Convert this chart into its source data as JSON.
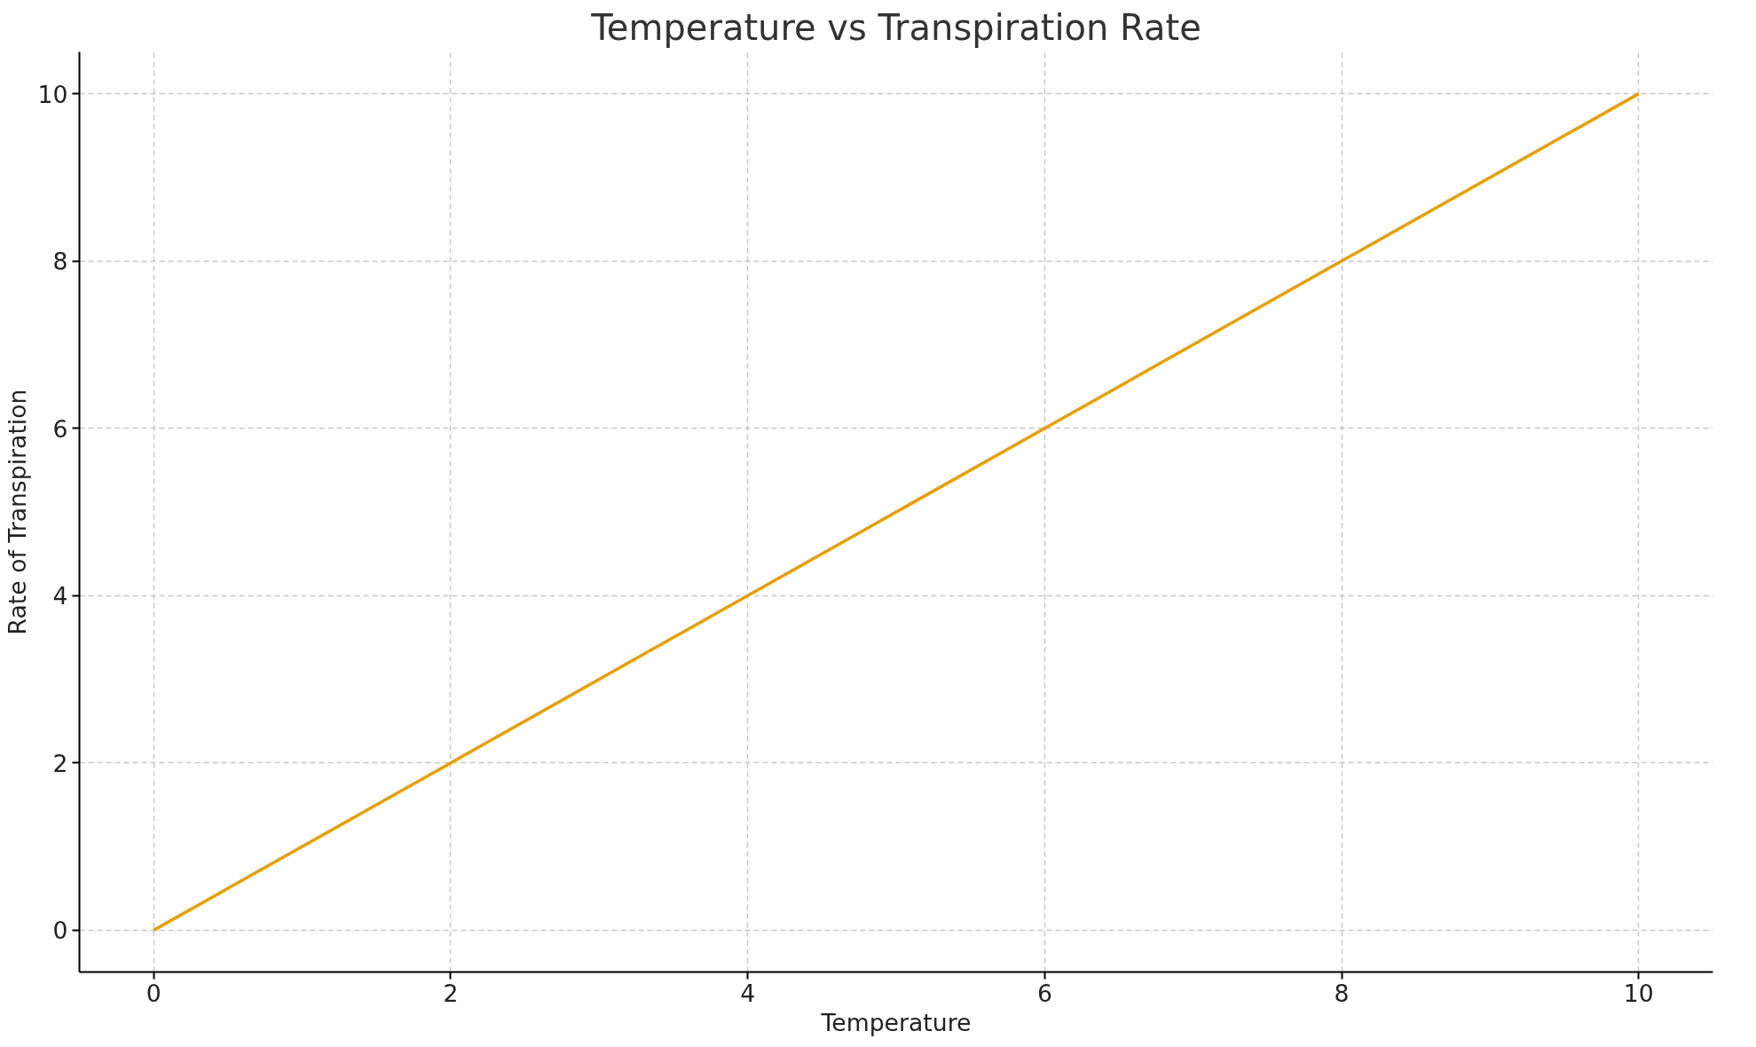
{
  "chart_data": {
    "type": "line",
    "title": "Temperature vs Transpiration Rate",
    "xlabel": "Temperature",
    "ylabel": "Rate of Transpiration",
    "x": [
      0,
      10
    ],
    "series": [
      {
        "color": "#e69f00",
        "values": [
          0,
          10
        ]
      }
    ],
    "xlim": [
      -0.5,
      10.5
    ],
    "ylim": [
      -0.5,
      10.5
    ],
    "xticks": [
      0,
      2,
      4,
      6,
      8,
      10
    ],
    "yticks": [
      0,
      2,
      4,
      6,
      8,
      10
    ],
    "grid": true,
    "line_style": "solid"
  }
}
